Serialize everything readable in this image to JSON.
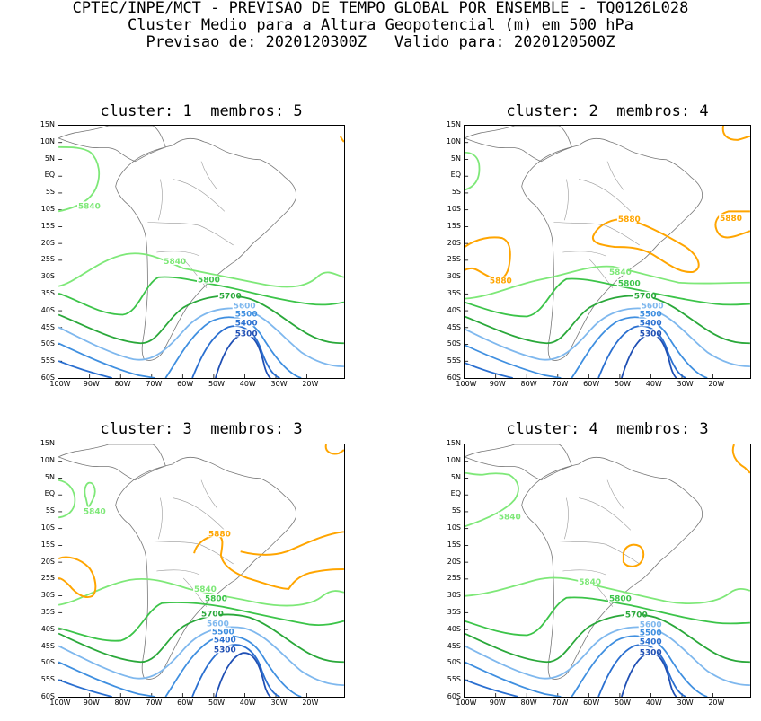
{
  "header": {
    "line1": "CPTEC/INPE/MCT - PREVISAO DE TEMPO GLOBAL POR ENSEMBLE - TQ0126L028",
    "line2": "Cluster Medio para a Altura Geopotencial (m) em 500 hPa",
    "line3": "Previsao de: 2020120300Z   Valido para: 2020120500Z"
  },
  "lat_labels": [
    "15N",
    "10N",
    "5N",
    "EQ",
    "5S",
    "10S",
    "15S",
    "20S",
    "25S",
    "30S",
    "35S",
    "40S",
    "45S",
    "50S",
    "55S",
    "60S"
  ],
  "lon_labels": [
    "100W",
    "90W",
    "80W",
    "70W",
    "60W",
    "50W",
    "40W",
    "30W",
    "20W"
  ],
  "contour_colors": {
    "5300": "#1f4fb4",
    "5400": "#2a6fd0",
    "5500": "#3f8fe0",
    "5600": "#7fb8ee",
    "5700": "#2aa83a",
    "5800": "#3cc449",
    "5840": "#7ee878",
    "5880": "#ffa500"
  },
  "panels": [
    {
      "title": "cluster: 1  membros: 5",
      "labels": {
        "l5840a": "5840",
        "l5840b": "5840",
        "l5800": "5800",
        "l5700": "5700",
        "l5600": "5600",
        "l5500": "5500",
        "l5400": "5400",
        "l5300": "5300"
      }
    },
    {
      "title": "cluster: 2  membros: 4",
      "labels": {
        "l5880a": "5880",
        "l5880b": "5880",
        "l5880c": "5880",
        "l5840": "5840",
        "l5800": "5800",
        "l5700": "5700",
        "l5600": "5600",
        "l5500": "5500",
        "l5400": "5400",
        "l5300": "5300"
      }
    },
    {
      "title": "cluster: 3  membros: 3",
      "labels": {
        "l5840a": "5840",
        "l5840b": "5840",
        "l5880": "5880",
        "l5800": "5800",
        "l5700": "5700",
        "l5600": "5600",
        "l5500": "5500",
        "l5400": "5400",
        "l5300": "5300"
      }
    },
    {
      "title": "cluster: 4  membros: 3",
      "labels": {
        "l5840a": "5840",
        "l5840b": "5840",
        "l5800": "5800",
        "l5700": "5700",
        "l5600": "5600",
        "l5500": "5500",
        "l5400": "5400",
        "l5300": "5300"
      }
    }
  ]
}
